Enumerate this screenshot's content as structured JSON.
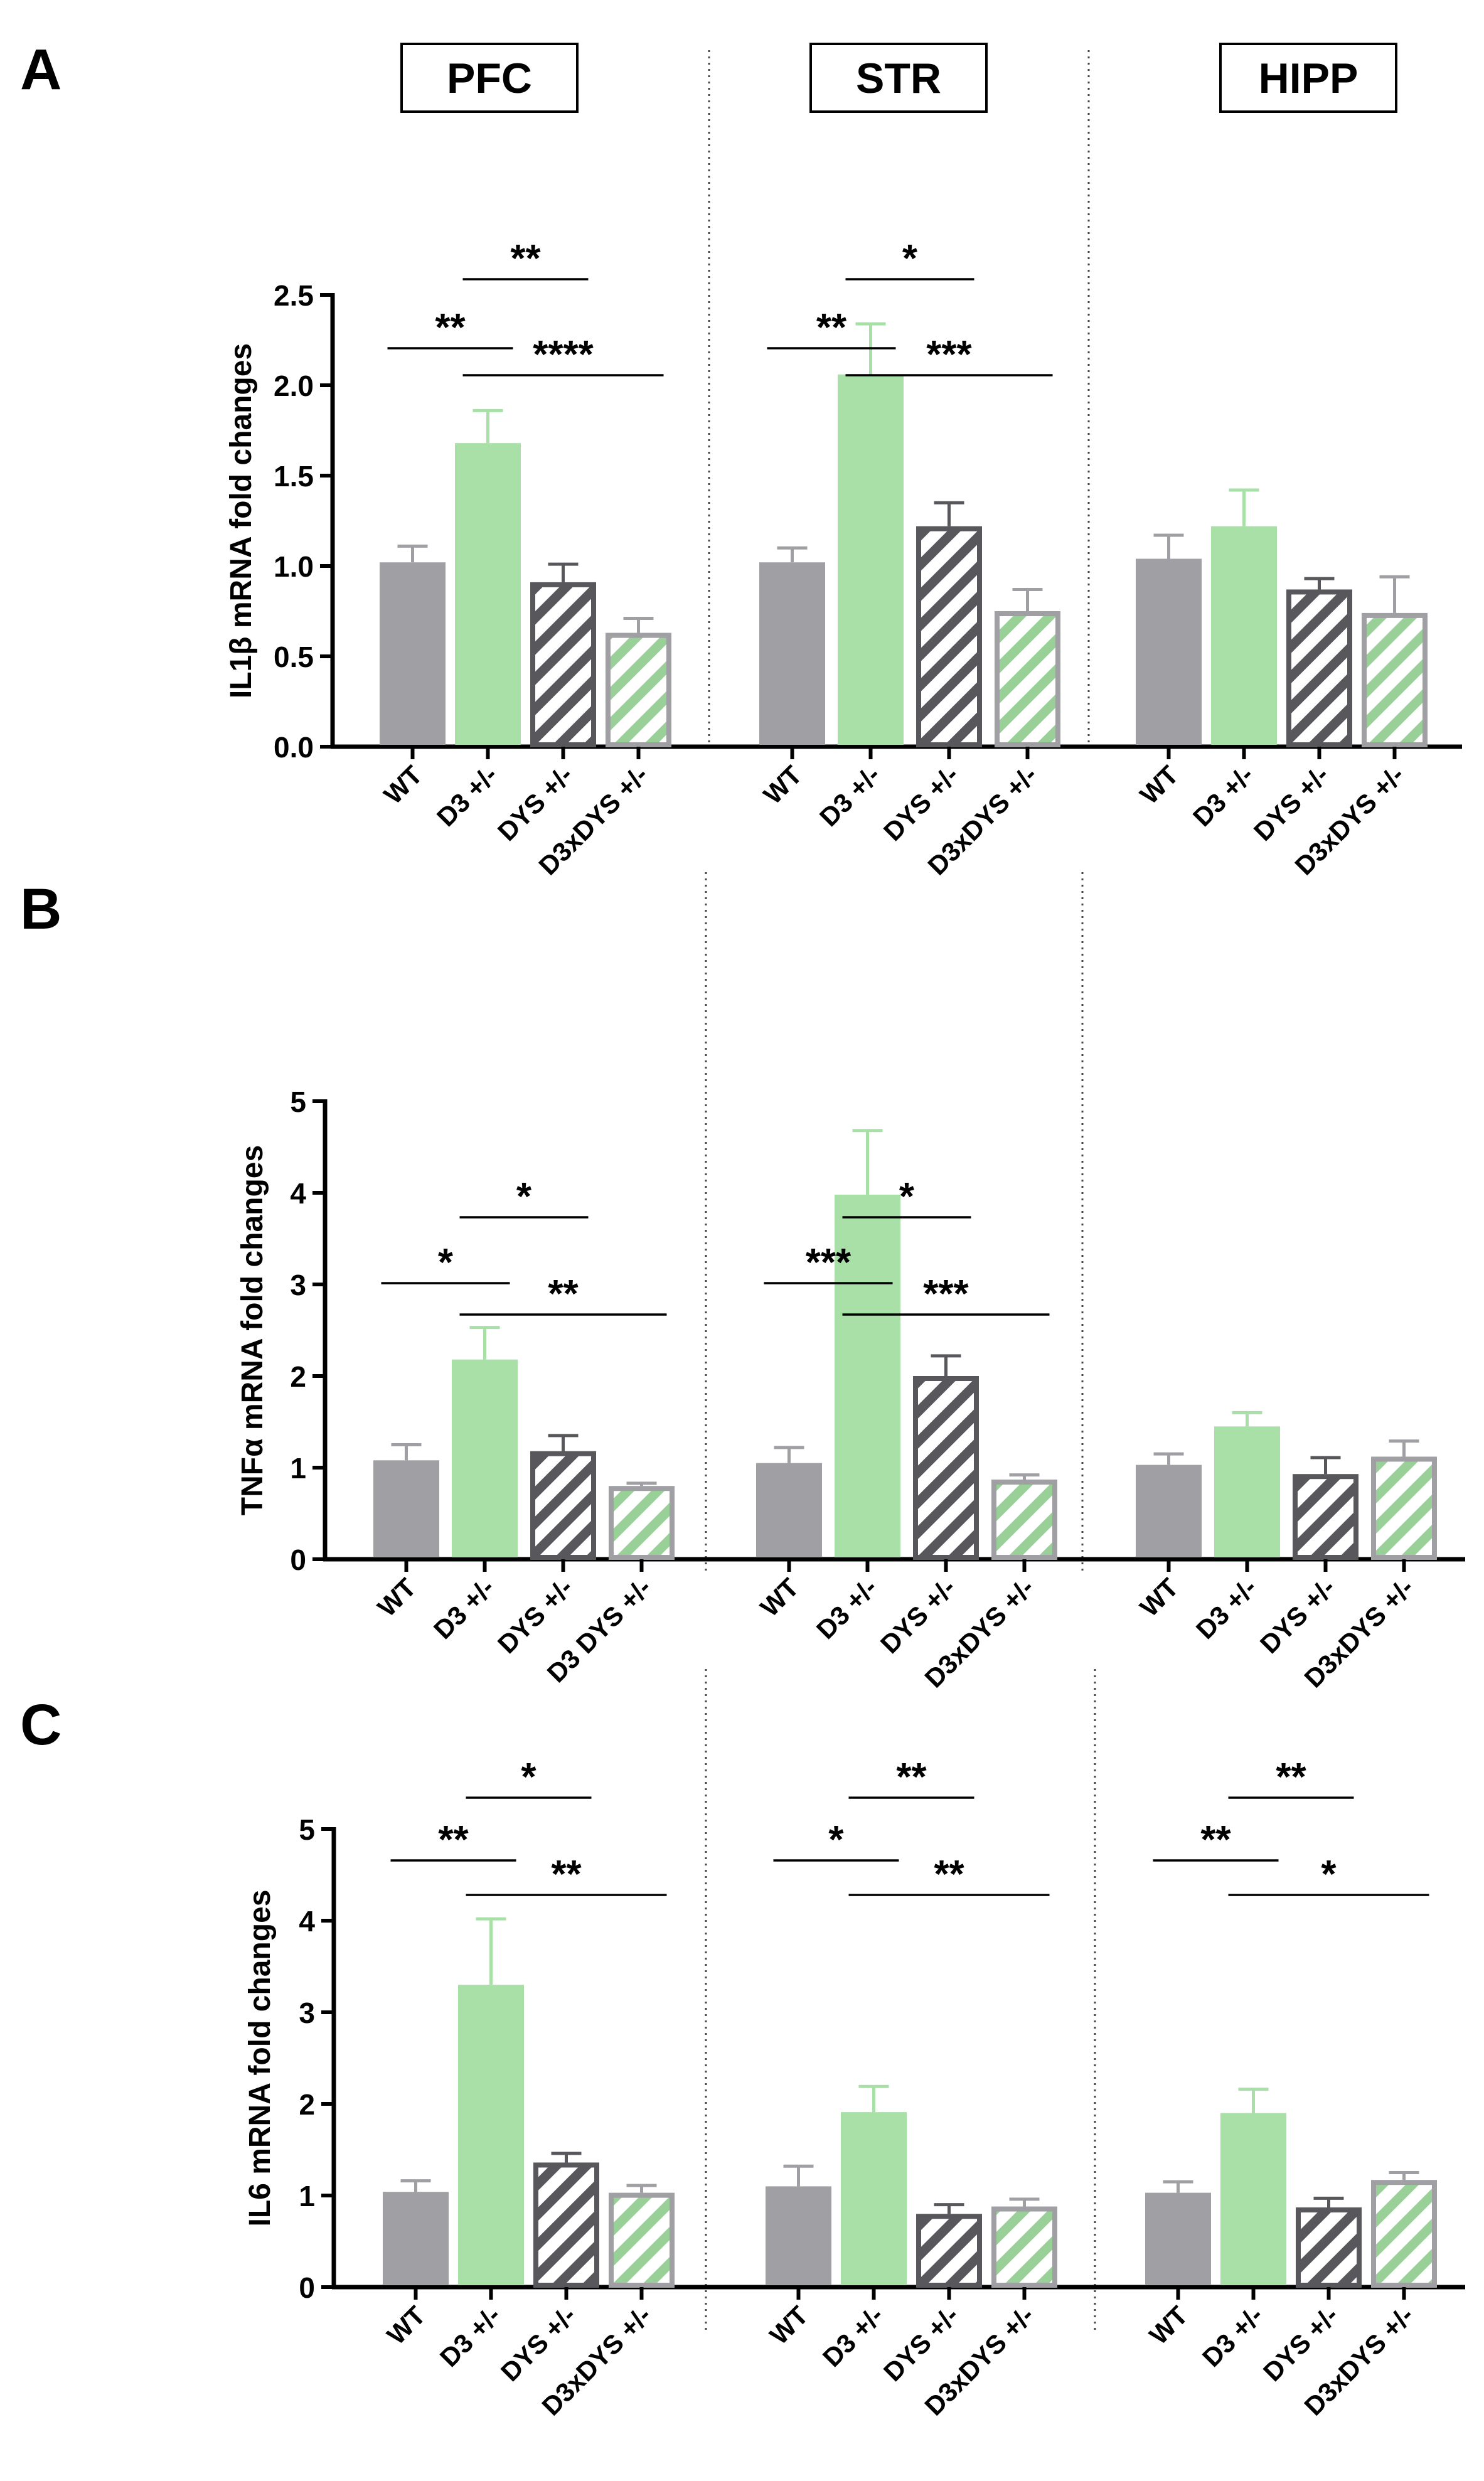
{
  "colors": {
    "wt": "#a09fa4",
    "d3": "#a8e0a8",
    "dys_stroke": "#58585c",
    "d3xdys_stroke": "#a09fa4",
    "d3xdys_hatch": "#98d098"
  },
  "regions": [
    "PFC",
    "STR",
    "HIPP"
  ],
  "chart_data": [
    {
      "type": "bar",
      "panel": "A",
      "ylabel": "IL1β mRNA fold changes",
      "ylim": [
        0,
        2.5
      ],
      "yticks": [
        "0.0",
        "0.5",
        "1.0",
        "1.5",
        "2.0",
        "2.5"
      ],
      "ytick_values": [
        0,
        0.5,
        1.0,
        1.5,
        2.0,
        2.5
      ],
      "groups": [
        {
          "region": "PFC",
          "categories": [
            "WT",
            "D3 +/-",
            "DYS +/-",
            "D3xDYS +/-"
          ],
          "values": [
            1.02,
            1.68,
            0.91,
            0.63
          ],
          "errors": [
            0.09,
            0.18,
            0.1,
            0.08
          ],
          "sig": [
            {
              "from": 0,
              "to": 1,
              "level": 1,
              "label": "**"
            },
            {
              "from": 1,
              "to": 2,
              "level": 2,
              "label": "**"
            },
            {
              "from": 1,
              "to": 3,
              "level": 0,
              "label": "****"
            }
          ]
        },
        {
          "region": "STR",
          "categories": [
            "WT",
            "D3 +/-",
            "DYS +/-",
            "D3xDYS +/-"
          ],
          "values": [
            1.02,
            2.06,
            1.22,
            0.75
          ],
          "errors": [
            0.08,
            0.28,
            0.13,
            0.12
          ],
          "sig": [
            {
              "from": 0,
              "to": 1,
              "level": 1,
              "label": "**"
            },
            {
              "from": 1,
              "to": 2,
              "level": 2,
              "label": "*"
            },
            {
              "from": 1,
              "to": 3,
              "level": 0,
              "label": "***"
            }
          ]
        },
        {
          "region": "HIPP",
          "categories": [
            "WT",
            "D3 +/-",
            "DYS +/-",
            "D3xDYS +/-"
          ],
          "values": [
            1.04,
            1.22,
            0.87,
            0.74
          ],
          "errors": [
            0.13,
            0.2,
            0.06,
            0.2
          ],
          "sig": []
        }
      ]
    },
    {
      "type": "bar",
      "panel": "B",
      "ylabel": "TNFα mRNA fold changes",
      "ylim": [
        0,
        5
      ],
      "yticks": [
        "0",
        "1",
        "2",
        "3",
        "4",
        "5"
      ],
      "ytick_values": [
        0,
        1,
        2,
        3,
        4,
        5
      ],
      "groups": [
        {
          "region": "PFC",
          "categories": [
            "WT",
            "D3 +/-",
            "DYS +/-",
            "D3 DYS +/-"
          ],
          "values": [
            1.08,
            2.18,
            1.18,
            0.8
          ],
          "errors": [
            0.17,
            0.35,
            0.17,
            0.03
          ],
          "sig": [
            {
              "from": 0,
              "to": 1,
              "level": 1,
              "label": "*"
            },
            {
              "from": 1,
              "to": 2,
              "level": 2,
              "label": "*"
            },
            {
              "from": 1,
              "to": 3,
              "level": 0,
              "label": "**"
            }
          ]
        },
        {
          "region": "STR",
          "categories": [
            "WT",
            "D3 +/-",
            "DYS +/-",
            "D3xDYS +/-"
          ],
          "values": [
            1.05,
            3.98,
            2.0,
            0.87
          ],
          "errors": [
            0.17,
            0.7,
            0.22,
            0.05
          ],
          "sig": [
            {
              "from": 0,
              "to": 1,
              "level": 1,
              "label": "***"
            },
            {
              "from": 1,
              "to": 2,
              "level": 2,
              "label": "*"
            },
            {
              "from": 1,
              "to": 3,
              "level": 0,
              "label": "***"
            }
          ]
        },
        {
          "region": "HIPP",
          "categories": [
            "WT",
            "D3 +/-",
            "DYS +/-",
            "D3xDYS +/-"
          ],
          "values": [
            1.03,
            1.45,
            0.93,
            1.12
          ],
          "errors": [
            0.12,
            0.15,
            0.18,
            0.17
          ],
          "sig": []
        }
      ]
    },
    {
      "type": "bar",
      "panel": "C",
      "ylabel": "IL6 mRNA fold changes",
      "ylim": [
        0,
        5
      ],
      "yticks": [
        "0",
        "1",
        "2",
        "3",
        "4",
        "5"
      ],
      "ytick_values": [
        0,
        1,
        2,
        3,
        4,
        5
      ],
      "groups": [
        {
          "region": "PFC",
          "categories": [
            "WT",
            "D3 +/-",
            "DYS +/-",
            "D3xDYS +/-"
          ],
          "values": [
            1.04,
            3.3,
            1.36,
            1.03
          ],
          "errors": [
            0.12,
            0.72,
            0.1,
            0.08
          ],
          "sig": [
            {
              "from": 0,
              "to": 1,
              "level": 1,
              "label": "**"
            },
            {
              "from": 1,
              "to": 2,
              "level": 2,
              "label": "*"
            },
            {
              "from": 1,
              "to": 3,
              "level": 0,
              "label": "**"
            }
          ]
        },
        {
          "region": "STR",
          "categories": [
            "WT",
            "D3 +/-",
            "DYS +/-",
            "D3xDYS +/-"
          ],
          "values": [
            1.1,
            1.91,
            0.8,
            0.88
          ],
          "errors": [
            0.22,
            0.28,
            0.1,
            0.08
          ],
          "sig": [
            {
              "from": 0,
              "to": 1,
              "level": 1,
              "label": "*"
            },
            {
              "from": 1,
              "to": 2,
              "level": 2,
              "label": "**"
            },
            {
              "from": 1,
              "to": 3,
              "level": 0,
              "label": "**"
            }
          ]
        },
        {
          "region": "HIPP",
          "categories": [
            "WT",
            "D3 +/-",
            "DYS +/-",
            "D3xDYS +/-"
          ],
          "values": [
            1.03,
            1.9,
            0.87,
            1.17
          ],
          "errors": [
            0.12,
            0.26,
            0.1,
            0.08
          ],
          "sig": [
            {
              "from": 0,
              "to": 1,
              "level": 1,
              "label": "**"
            },
            {
              "from": 1,
              "to": 2,
              "level": 2,
              "label": "**"
            },
            {
              "from": 1,
              "to": 3,
              "level": 0,
              "label": "*"
            }
          ]
        }
      ]
    }
  ]
}
